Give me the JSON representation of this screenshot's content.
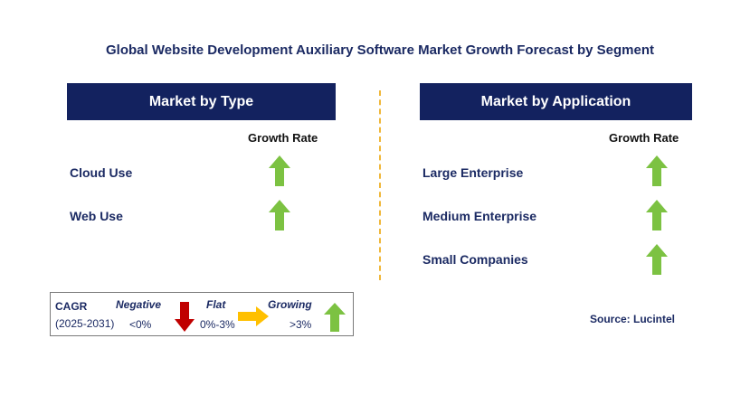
{
  "title": "Global Website Development Auxiliary Software Market Growth Forecast by Segment",
  "left_panel": {
    "header": "Market by Type",
    "growth_rate_label": "Growth Rate",
    "items": [
      {
        "label": "Cloud Use",
        "trend": "growing"
      },
      {
        "label": "Web Use",
        "trend": "growing"
      }
    ]
  },
  "right_panel": {
    "header": "Market by Application",
    "growth_rate_label": "Growth Rate",
    "items": [
      {
        "label": "Large Enterprise",
        "trend": "growing"
      },
      {
        "label": "Medium Enterprise",
        "trend": "growing"
      },
      {
        "label": "Small Companies",
        "trend": "growing"
      }
    ]
  },
  "legend": {
    "cagr": "CAGR",
    "period": "(2025-2031)",
    "negative": {
      "label": "Negative",
      "range": "<0%",
      "icon": "red-down-arrow-icon"
    },
    "flat": {
      "label": "Flat",
      "range": "0%-3%",
      "icon": "yellow-right-arrow-icon"
    },
    "growing": {
      "label": "Growing",
      "range": ">3%",
      "icon": "green-up-arrow-icon"
    }
  },
  "source": "Source: Lucintel",
  "colors": {
    "header_bg": "#13225f",
    "text": "#1b2a63",
    "growing": "#7cc242",
    "negative": "#c00000",
    "flat": "#ffc000",
    "divider": "#f0b73a"
  }
}
